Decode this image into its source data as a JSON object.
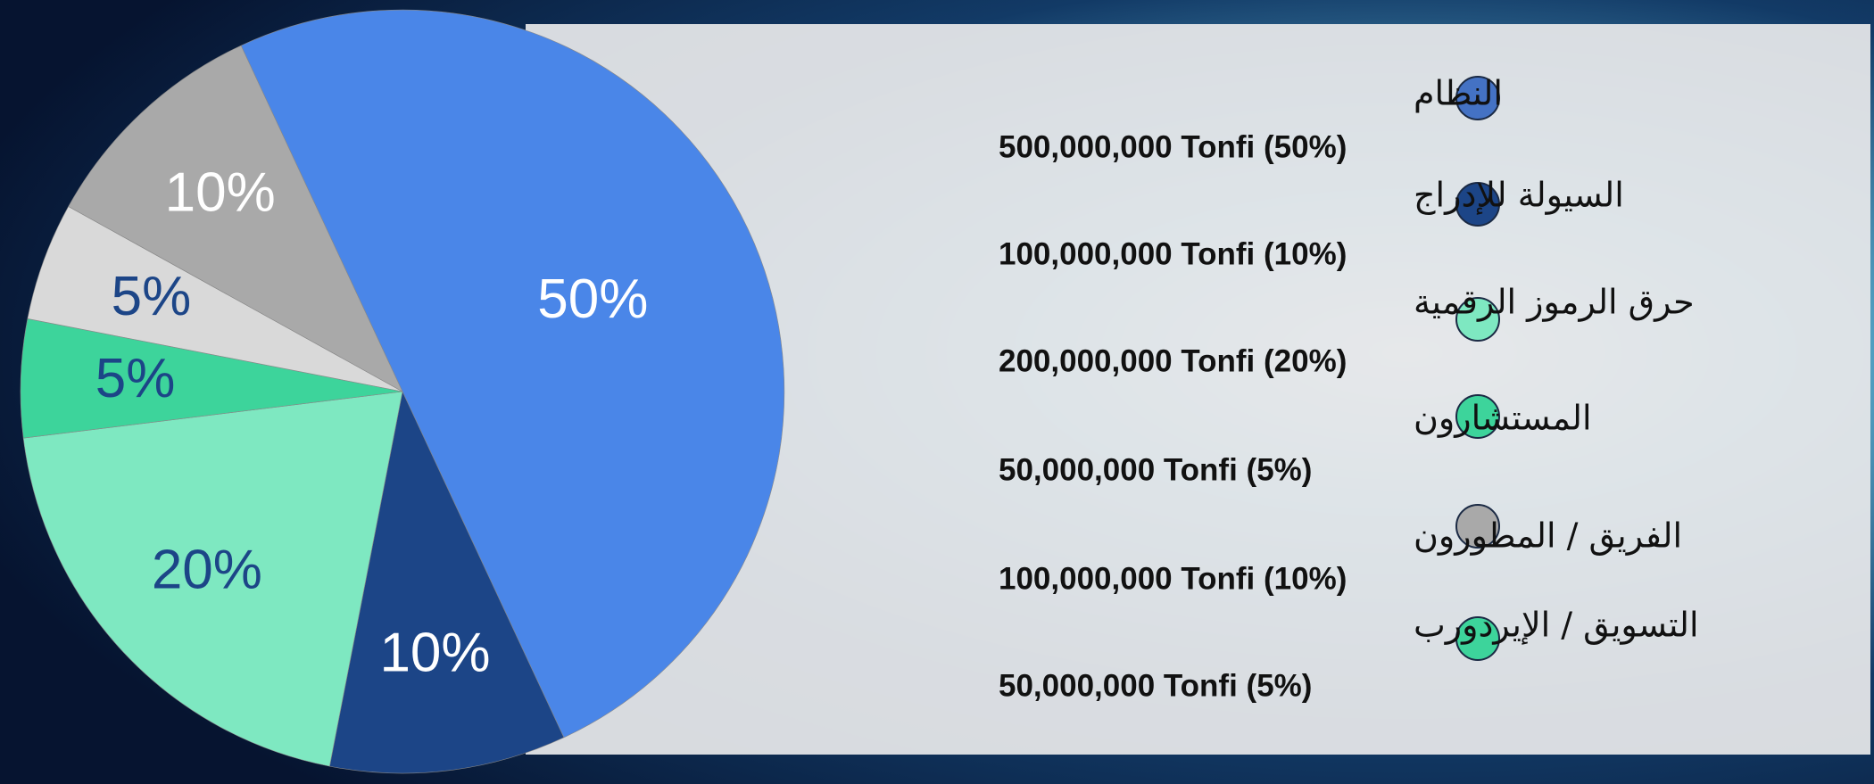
{
  "chart_data": {
    "type": "pie",
    "values": [
      50,
      10,
      20,
      5,
      5,
      10
    ],
    "value_labels": [
      "50%",
      "10%",
      "20%",
      "5%",
      "5%",
      "10%"
    ],
    "colors": [
      "#4a86e8",
      "#1c4587",
      "#7ee8c1",
      "#3dd49b",
      "#d9d9d9",
      "#a9a9a9"
    ],
    "label_colors": [
      "#ffffff",
      "#ffffff",
      "#1c4587",
      "#1c4587",
      "#1c4587",
      "#ffffff"
    ],
    "legend": [
      {
        "name": "النظام",
        "detail": "500,000,000 Tonfi (50%)",
        "color": "#4472c4"
      },
      {
        "name": "السيولة للإدراج",
        "detail": "100,000,000 Tonfi (10%)",
        "color": "#1c4587"
      },
      {
        "name": "حرق الرموز الرقمية",
        "detail": "200,000,000 Tonfi (20%)",
        "color": "#7ee8c1"
      },
      {
        "name": "المستشارون",
        "detail": "50,000,000 Tonfi (5%)",
        "color": "#3dd49b"
      },
      {
        "name": "الفريق / المطورون",
        "detail": "100,000,000 Tonfi (10%)",
        "color": "#a9a9a9"
      },
      {
        "name": "التسويق / الإيردورب",
        "detail": "50,000,000 Tonfi (5%)",
        "color": "#3dd49b"
      }
    ]
  }
}
